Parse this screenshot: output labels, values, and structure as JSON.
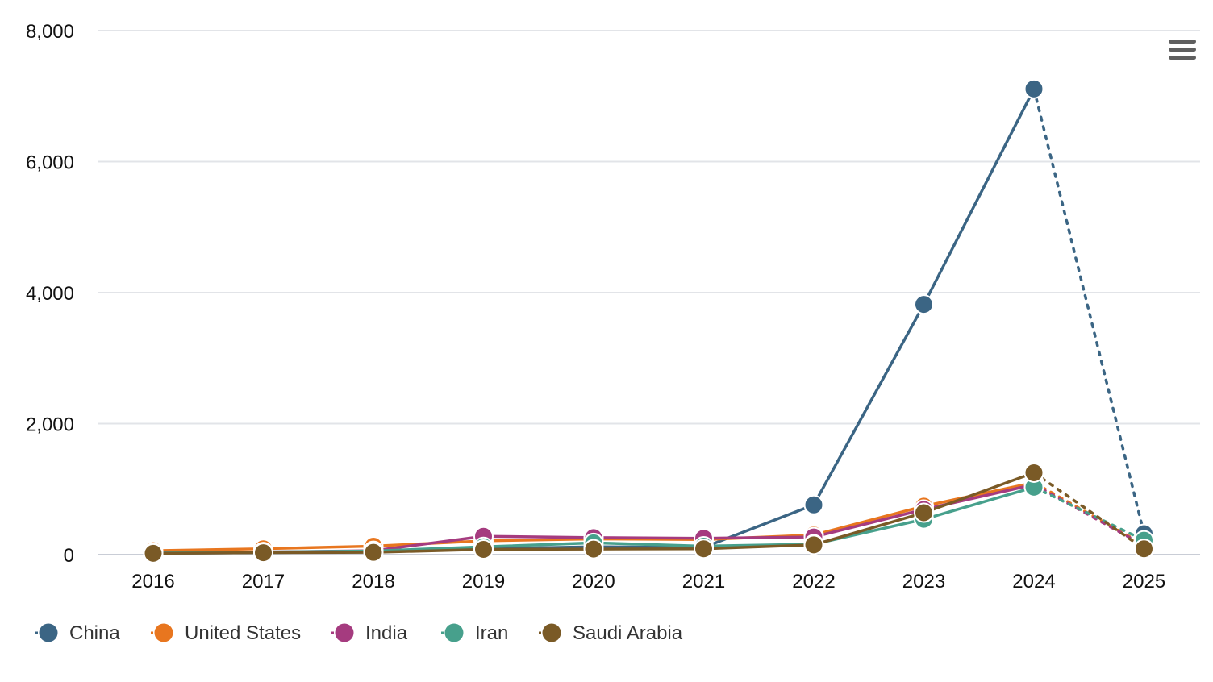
{
  "chart_data": {
    "type": "line",
    "title": "",
    "xlabel": "",
    "ylabel": "",
    "categories": [
      "2016",
      "2017",
      "2018",
      "2019",
      "2020",
      "2021",
      "2022",
      "2023",
      "2024",
      "2025"
    ],
    "ylim": [
      0,
      8000
    ],
    "yticks": [
      0,
      2000,
      4000,
      6000,
      8000
    ],
    "ytick_labels": [
      "0",
      "2,000",
      "4,000",
      "6,000",
      "8,000"
    ],
    "grid": true,
    "legend_position": "bottom-left",
    "last_segment_style": "dotted",
    "series": [
      {
        "name": "China",
        "color": "#3b6584",
        "values": [
          20,
          30,
          45,
          90,
          120,
          110,
          760,
          3820,
          7110,
          320
        ]
      },
      {
        "name": "United States",
        "color": "#e8761f",
        "values": [
          60,
          90,
          130,
          210,
          240,
          230,
          300,
          740,
          1100,
          150
        ]
      },
      {
        "name": "India",
        "color": "#a53b7f",
        "values": [
          30,
          40,
          60,
          280,
          260,
          250,
          270,
          690,
          1070,
          140
        ]
      },
      {
        "name": "Iran",
        "color": "#47a08c",
        "values": [
          25,
          40,
          55,
          120,
          180,
          130,
          160,
          540,
          1030,
          220
        ]
      },
      {
        "name": "Saudi Arabia",
        "color": "#7a5a26",
        "values": [
          20,
          30,
          35,
          80,
          85,
          90,
          150,
          640,
          1250,
          90
        ]
      }
    ]
  },
  "menu": {
    "icon": "hamburger-menu-icon"
  }
}
